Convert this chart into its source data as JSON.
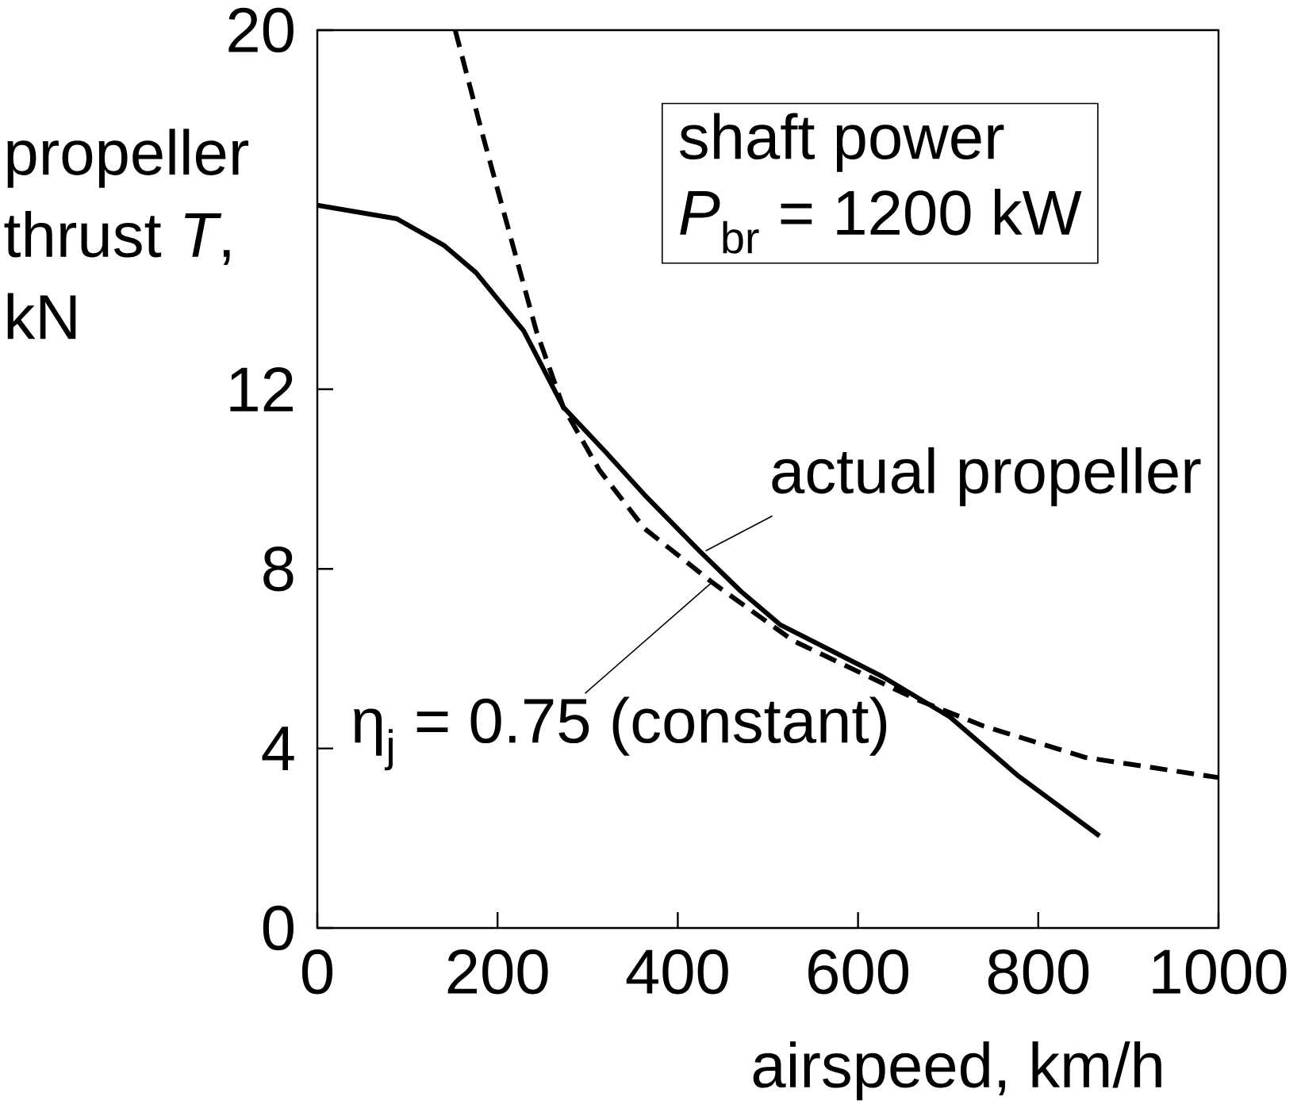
{
  "chart_data": {
    "type": "line",
    "xlabel": "airspeed, km/h",
    "ylabel": "propeller thrust *T*, kN",
    "xlim": [
      0,
      1000
    ],
    "ylim": [
      0,
      20
    ],
    "xticks": [
      0,
      200,
      400,
      600,
      800,
      1000
    ],
    "yticks": [
      0,
      4,
      8,
      12,
      20
    ],
    "series": [
      {
        "color": "#000000",
        "line_style": "solid",
        "x": [
          0,
          88,
          141,
          176,
          229,
          273,
          320,
          363,
          424,
          470,
          514,
          627,
          702,
          777,
          868
        ],
        "values": [
          16.1,
          15.8,
          15.2,
          14.6,
          13.3,
          11.6,
          10.6,
          9.65,
          8.4,
          7.5,
          6.75,
          5.6,
          4.7,
          3.4,
          2.05
        ]
      },
      {
        "color": "#000000",
        "line_style": "dashed",
        "x": [
          153,
          183,
          213,
          243,
          273,
          313,
          363,
          438,
          528,
          664,
          739,
          852,
          1000
        ],
        "values": [
          20,
          17.7,
          15.5,
          13.3,
          11.6,
          10.2,
          8.9,
          7.7,
          6.4,
          5.1,
          4.5,
          3.8,
          3.35
        ]
      }
    ],
    "annotations": [
      "shaft power",
      "*P*$_{br}$ = 1200 kW",
      {
        "text": "actual propeller",
        "x": 431,
        "y": 8.4
      },
      {
        "text": "η$_{j}$ = 0.75 (constant)",
        "x": 438,
        "y": 7.7
      }
    ]
  }
}
